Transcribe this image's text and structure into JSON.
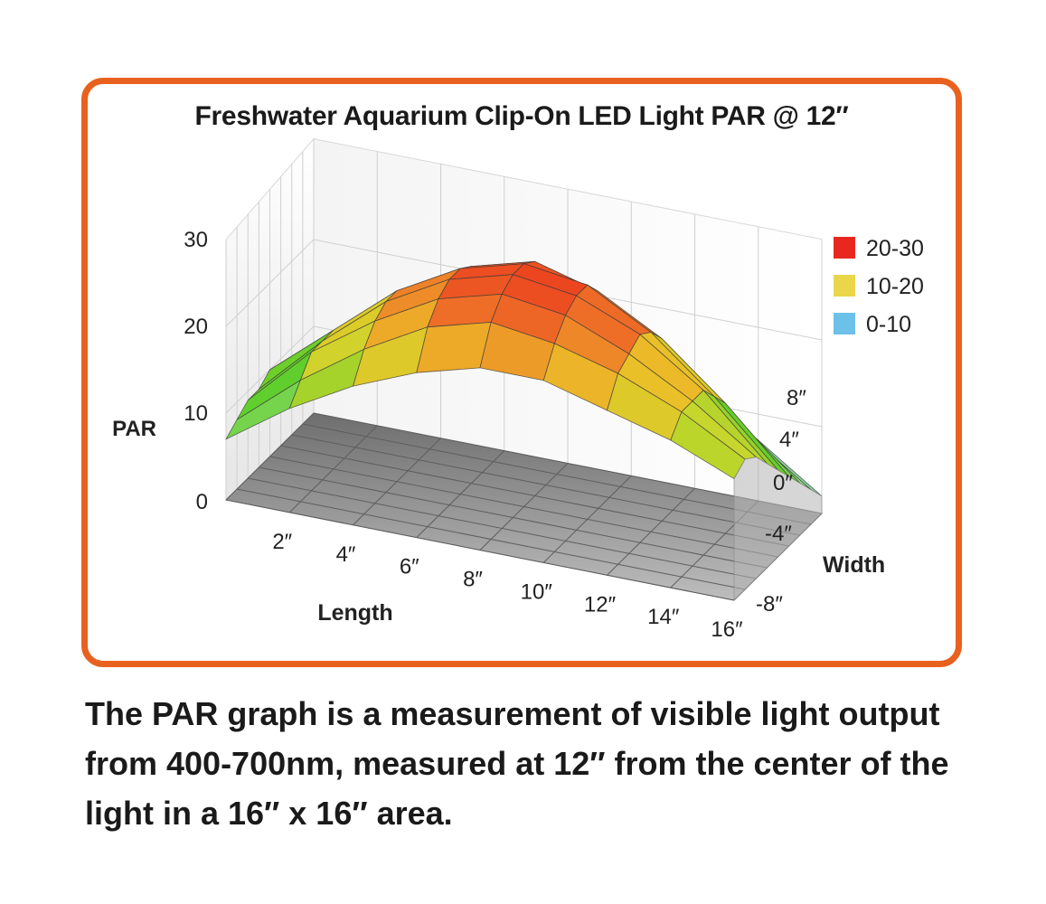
{
  "chart_data": {
    "type": "surface3d",
    "title": "Freshwater Aquarium Clip-On LED Light PAR @ 12″",
    "zlabel": "PAR",
    "xlabel": "Length",
    "ylabel": "Width",
    "zlim": [
      0,
      30
    ],
    "z_ticks": [
      "0",
      "10",
      "20",
      "30"
    ],
    "x_ticks": [
      "2″",
      "4″",
      "6″",
      "8″",
      "10″",
      "12″",
      "14″",
      "16″"
    ],
    "y_ticks": [
      "8″",
      "4″",
      "0″",
      "-4″",
      "-8″"
    ],
    "x": [
      0,
      2,
      4,
      6,
      8,
      10,
      12,
      14,
      16
    ],
    "y": [
      8,
      6,
      4,
      2,
      0,
      -2,
      -4,
      -6,
      -8
    ],
    "z": [
      [
        7,
        12,
        16,
        19,
        21,
        21,
        19,
        17,
        14
      ],
      [
        8,
        14,
        19,
        23,
        25,
        24,
        22,
        19,
        15
      ],
      [
        9,
        16,
        21,
        25,
        27,
        26,
        23,
        19,
        14
      ],
      [
        9,
        16,
        22,
        26,
        28,
        27,
        24,
        19,
        12
      ],
      [
        10,
        16,
        22,
        26,
        28,
        27,
        23,
        17,
        10
      ],
      [
        9,
        15,
        21,
        25,
        27,
        25,
        21,
        15,
        8
      ],
      [
        9,
        14,
        19,
        23,
        24,
        22,
        18,
        12,
        6
      ],
      [
        8,
        12,
        16,
        19,
        20,
        18,
        14,
        9,
        4
      ],
      [
        7,
        10,
        13,
        15,
        16,
        14,
        11,
        7,
        2
      ]
    ],
    "legend": [
      {
        "label": "20-30",
        "color": "#e8281e"
      },
      {
        "label": "10-20",
        "color": "#ead64a"
      },
      {
        "label": "0-10",
        "color": "#6cc1e8"
      }
    ],
    "legend_position": "right",
    "grid": true
  },
  "caption": {
    "line1": "The PAR graph is a measurement of visible light output",
    "line2": "from 400-700nm, measured at 12″ from the center of the",
    "line3": "light in a 16″ x 16″ area."
  },
  "colors": {
    "frame_border": "#e9611f",
    "floor": "#8c8c8c",
    "wall": "#f2f2f2"
  }
}
